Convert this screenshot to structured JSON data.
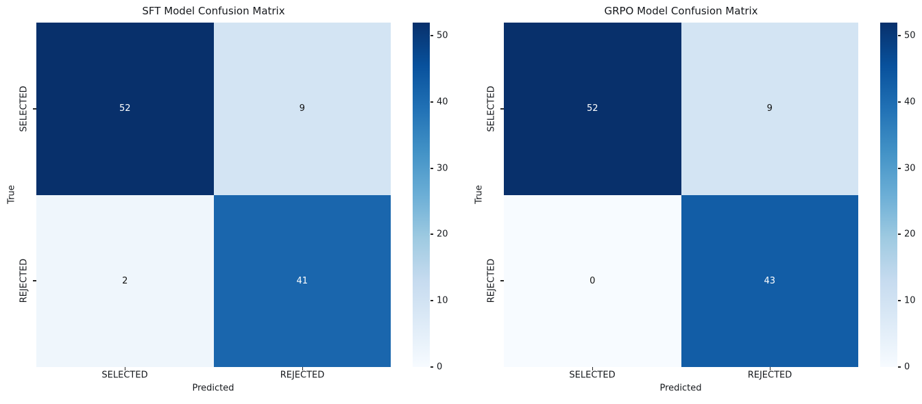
{
  "figure": {
    "background": "#ffffff",
    "text_color": "#15181c"
  },
  "colors": {
    "colormap_name": "Blues",
    "colorbar_gradient": "linear-gradient(to top, #f7fbff 0%, #deebf7 12.5%, #c6dbef 25%, #9ecae1 37.5%, #6baed6 50%, #4292c6 62.5%, #2171b5 75%, #08519c 87.5%, #08306b 100%)",
    "annotation_light": "#ffffff",
    "annotation_dark": "#111111"
  },
  "chart_data": [
    {
      "type": "heatmap",
      "title": "SFT Model Confusion Matrix",
      "xlabel": "Predicted",
      "ylabel": "True",
      "x_tick_labels": [
        "SELECTED",
        "REJECTED"
      ],
      "y_tick_labels": [
        "SELECTED",
        "REJECTED"
      ],
      "values": [
        [
          52,
          9
        ],
        [
          2,
          41
        ]
      ],
      "cells": [
        {
          "row": "SELECTED",
          "col": "SELECTED",
          "value": 52,
          "bg": "#08306b",
          "fg": "#ffffff"
        },
        {
          "row": "SELECTED",
          "col": "REJECTED",
          "value": 9,
          "bg": "#d3e4f3",
          "fg": "#111111"
        },
        {
          "row": "REJECTED",
          "col": "SELECTED",
          "value": 2,
          "bg": "#eff6fc",
          "fg": "#111111"
        },
        {
          "row": "REJECTED",
          "col": "REJECTED",
          "value": 41,
          "bg": "#1a66ad",
          "fg": "#ffffff"
        }
      ],
      "colorbar": {
        "min": 0,
        "max": 52,
        "ticks": [
          50,
          40,
          30,
          20,
          10,
          0
        ],
        "tick_labels": [
          "50",
          "40",
          "30",
          "20",
          "10",
          "0"
        ]
      },
      "legend": "none",
      "grid": false
    },
    {
      "type": "heatmap",
      "title": "GRPO Model Confusion Matrix",
      "xlabel": "Predicted",
      "ylabel": "True",
      "x_tick_labels": [
        "SELECTED",
        "REJECTED"
      ],
      "y_tick_labels": [
        "SELECTED",
        "REJECTED"
      ],
      "values": [
        [
          52,
          9
        ],
        [
          0,
          43
        ]
      ],
      "cells": [
        {
          "row": "SELECTED",
          "col": "SELECTED",
          "value": 52,
          "bg": "#08306b",
          "fg": "#ffffff"
        },
        {
          "row": "SELECTED",
          "col": "REJECTED",
          "value": 9,
          "bg": "#d3e4f3",
          "fg": "#111111"
        },
        {
          "row": "REJECTED",
          "col": "SELECTED",
          "value": 0,
          "bg": "#f7fbff",
          "fg": "#111111"
        },
        {
          "row": "REJECTED",
          "col": "REJECTED",
          "value": 43,
          "bg": "#125da6",
          "fg": "#ffffff"
        }
      ],
      "colorbar": {
        "min": 0,
        "max": 52,
        "ticks": [
          50,
          40,
          30,
          20,
          10,
          0
        ],
        "tick_labels": [
          "50",
          "40",
          "30",
          "20",
          "10",
          "0"
        ]
      },
      "legend": "none",
      "grid": false
    }
  ]
}
